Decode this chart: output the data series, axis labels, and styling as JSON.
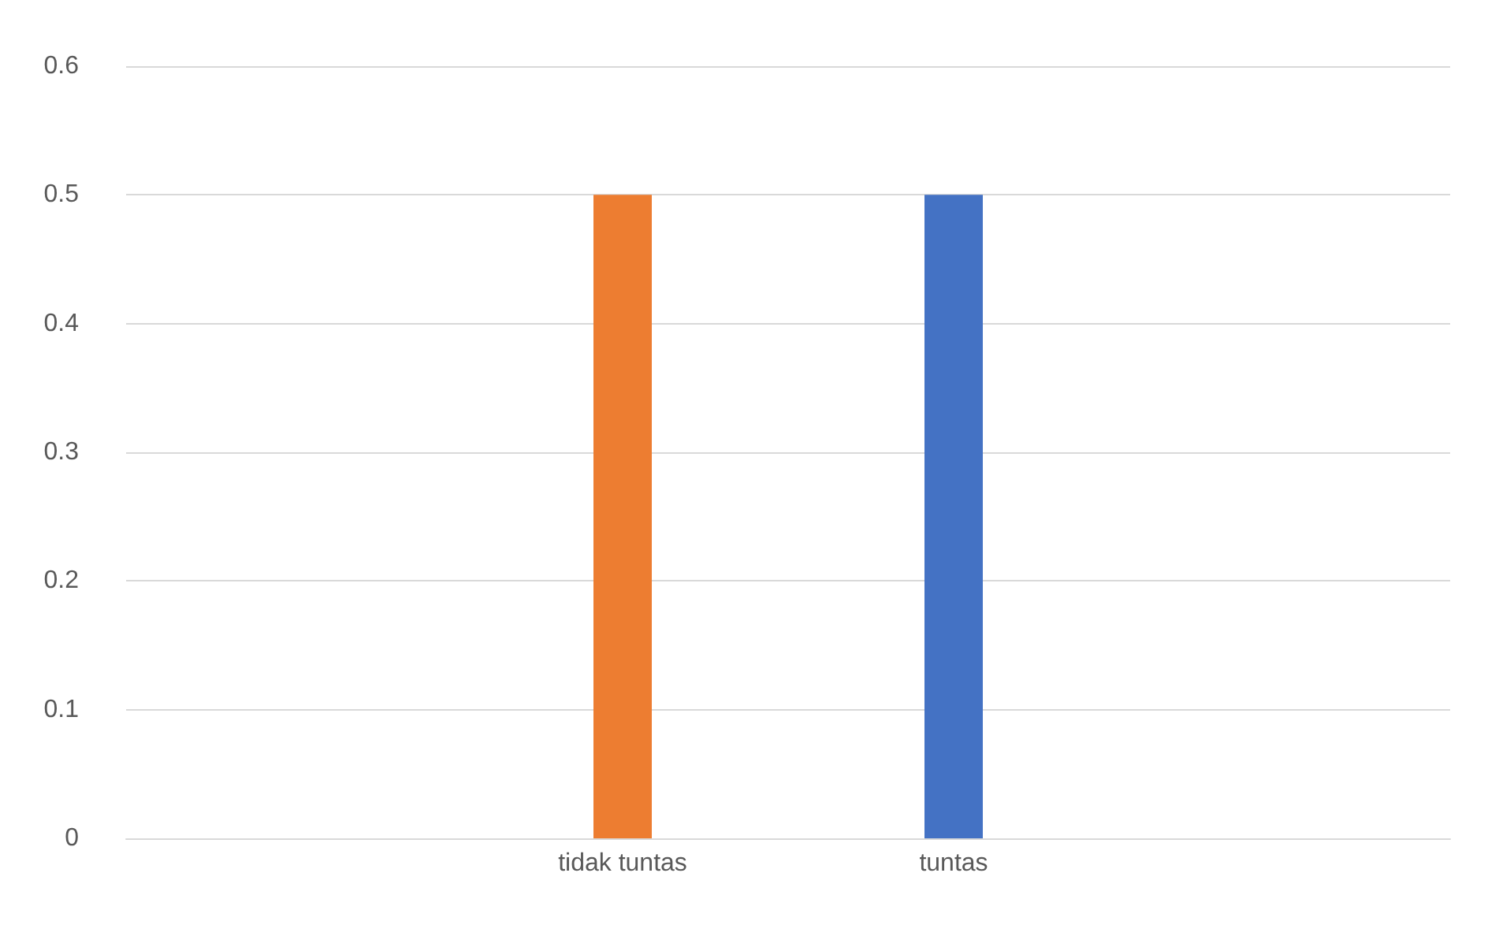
{
  "chart_data": {
    "type": "bar",
    "categories": [
      null,
      "tidak tuntas",
      "tuntas",
      null
    ],
    "values": [
      null,
      0.5,
      0.5,
      null
    ],
    "colors": [
      "#ed7d31",
      "#ed7d31",
      "#4472c4",
      "#4472c4"
    ],
    "ylim": [
      0,
      0.6
    ],
    "yticks": [
      0,
      0.1,
      0.2,
      0.3,
      0.4,
      0.5,
      0.6
    ],
    "grid": "y"
  }
}
